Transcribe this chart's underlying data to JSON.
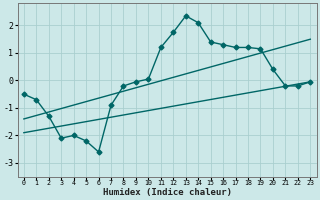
{
  "xlabel": "Humidex (Indice chaleur)",
  "bg_color": "#cce8e8",
  "grid_color": "#aacfcf",
  "line_color": "#006666",
  "xlim": [
    -0.5,
    23.5
  ],
  "ylim": [
    -3.5,
    2.8
  ],
  "yticks": [
    -3,
    -2,
    -1,
    0,
    1,
    2
  ],
  "xticks": [
    0,
    1,
    2,
    3,
    4,
    5,
    6,
    7,
    8,
    9,
    10,
    11,
    12,
    13,
    14,
    15,
    16,
    17,
    18,
    19,
    20,
    21,
    22,
    23
  ],
  "main_x": [
    0,
    1,
    2,
    3,
    4,
    5,
    6,
    7,
    8,
    9,
    10,
    11,
    12,
    13,
    14,
    15,
    16,
    17,
    18,
    19,
    20,
    21,
    22,
    23
  ],
  "main_y": [
    -0.5,
    -0.7,
    -1.3,
    -2.1,
    -2.0,
    -2.2,
    -2.6,
    -0.9,
    -0.2,
    -0.05,
    0.05,
    1.2,
    1.75,
    2.35,
    2.1,
    1.4,
    1.3,
    1.2,
    1.2,
    1.15,
    0.4,
    -0.2,
    -0.2,
    -0.05
  ],
  "upper_line_x": [
    0,
    23
  ],
  "upper_line_y": [
    -1.4,
    1.5
  ],
  "lower_line_x": [
    0,
    23
  ],
  "lower_line_y": [
    -1.9,
    -0.05
  ],
  "line_width": 1.0,
  "marker": "D",
  "marker_size": 2.5
}
